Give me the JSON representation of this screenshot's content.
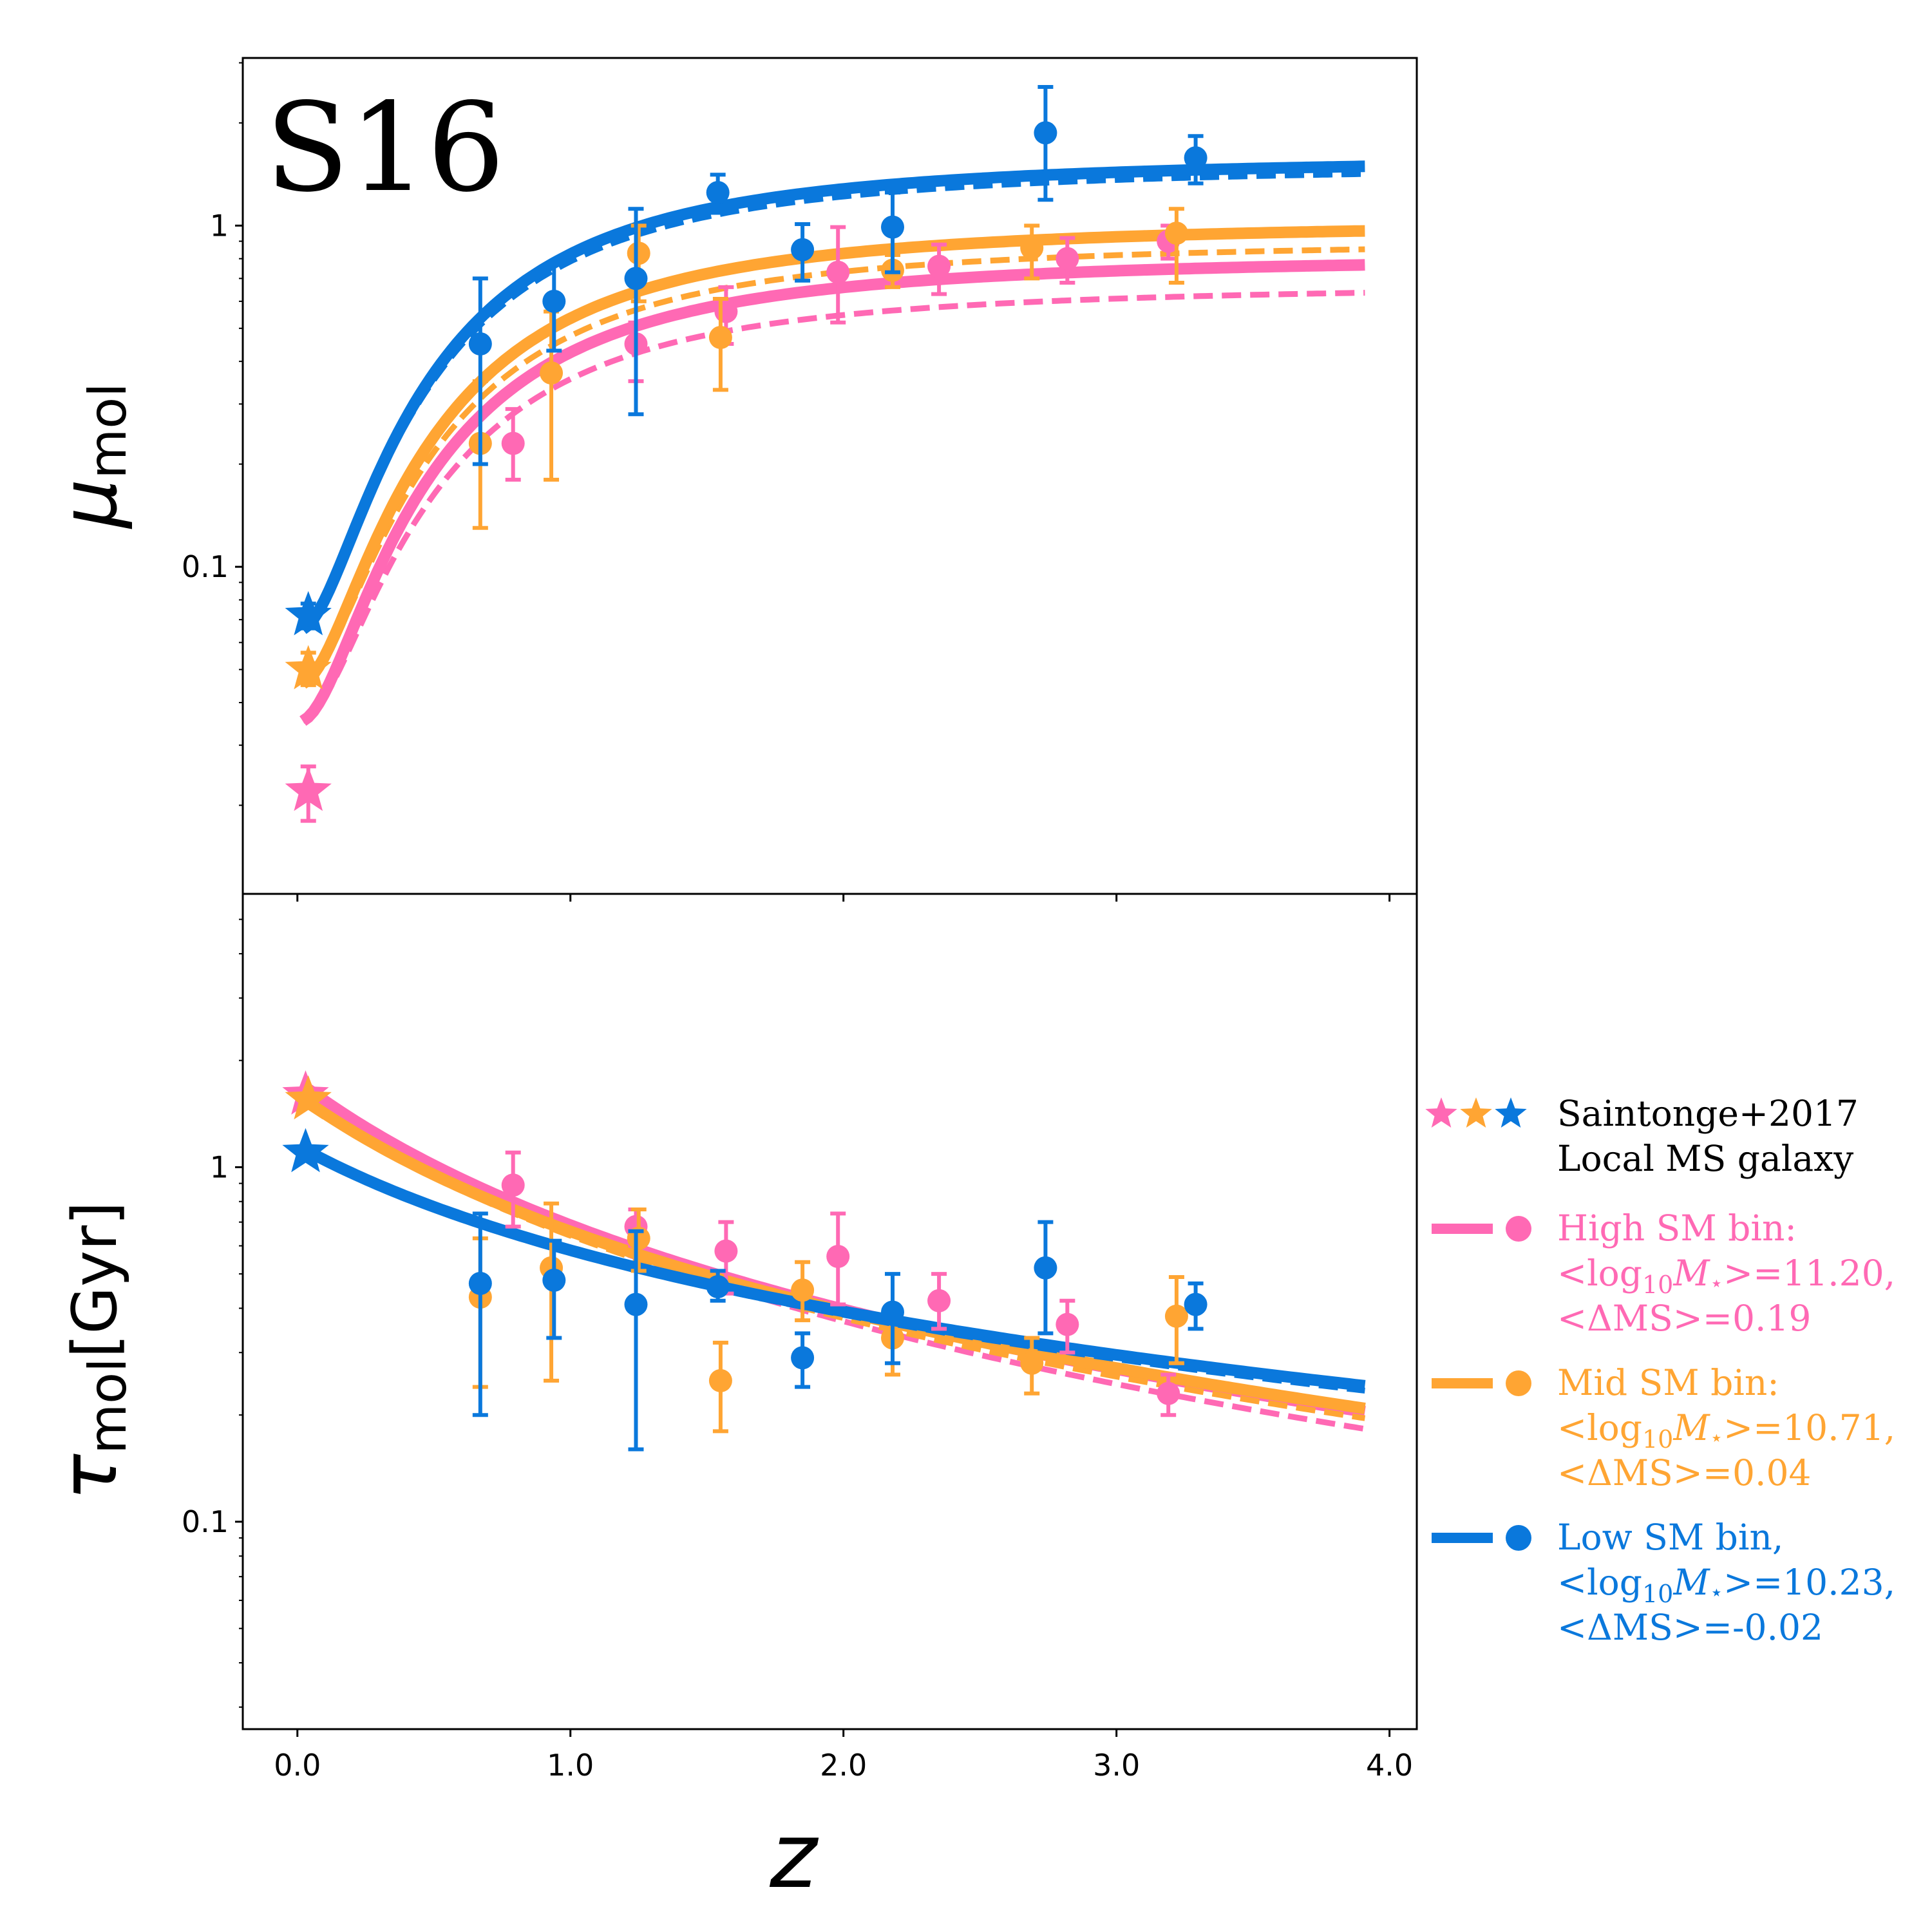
{
  "figure": {
    "panel_label": "S16",
    "xlabel": "z",
    "top_ylabel": "μ",
    "top_ylabel_sub": "mol",
    "bottom_ylabel": "τ",
    "bottom_ylabel_sub": "mol",
    "bottom_ylabel_unit": "[Gyr]"
  },
  "colors": {
    "high": "#ff69b4",
    "mid": "#ffa533",
    "low": "#0a78dc"
  },
  "chart_data": [
    {
      "type": "scatter",
      "panel": "top",
      "title": "S16",
      "ylabel": "μ_mol",
      "xlim": [
        -0.2,
        4.1
      ],
      "ylim": [
        0.011,
        3.1
      ],
      "yscale": "log",
      "xticks": [
        0.0,
        1.0,
        2.0,
        3.0,
        4.0
      ],
      "yticks": [
        {
          "value": 0.1,
          "label": "0.1"
        },
        {
          "value": 1,
          "label": "1"
        }
      ],
      "stars": [
        {
          "group": "high",
          "x": 0.04,
          "y": 0.022,
          "err": [
            0.018,
            0.026
          ]
        },
        {
          "group": "mid",
          "x": 0.04,
          "y": 0.05,
          "err": [
            0.045,
            0.056
          ]
        },
        {
          "group": "low",
          "x": 0.04,
          "y": 0.072,
          "err": [
            0.066,
            0.078
          ]
        }
      ],
      "series": [
        {
          "name": "High SM bin",
          "group": "high",
          "fit_solid": {
            "a": 0.035,
            "b": 0.78,
            "n": 2.0
          },
          "fit_dashed": {
            "a": 0.035,
            "b": 0.64,
            "n": 2.0
          },
          "points": [
            {
              "x": 0.79,
              "y": 0.23,
              "lo": 0.18,
              "hi": 0.29
            },
            {
              "x": 1.24,
              "y": 0.45,
              "lo": 0.35,
              "hi": 0.52
            },
            {
              "x": 1.57,
              "y": 0.56,
              "lo": 0.45,
              "hi": 0.66
            },
            {
              "x": 1.98,
              "y": 0.73,
              "lo": 0.52,
              "hi": 0.99
            },
            {
              "x": 2.35,
              "y": 0.76,
              "lo": 0.63,
              "hi": 0.88
            },
            {
              "x": 2.82,
              "y": 0.8,
              "lo": 0.68,
              "hi": 0.92
            },
            {
              "x": 3.19,
              "y": 0.9,
              "lo": 0.8,
              "hi": 1.0
            }
          ]
        },
        {
          "name": "Mid SM bin",
          "group": "mid",
          "fit_solid": {
            "a": 0.045,
            "b": 0.98,
            "n": 2.0
          },
          "fit_dashed": {
            "a": 0.045,
            "b": 0.86,
            "n": 2.0
          },
          "points": [
            {
              "x": 0.67,
              "y": 0.23,
              "lo": 0.13,
              "hi": 0.35
            },
            {
              "x": 0.93,
              "y": 0.37,
              "lo": 0.18,
              "hi": 0.56
            },
            {
              "x": 1.25,
              "y": 0.83,
              "lo": 0.6,
              "hi": 1.0
            },
            {
              "x": 1.55,
              "y": 0.47,
              "lo": 0.33,
              "hi": 0.61
            },
            {
              "x": 2.18,
              "y": 0.74,
              "lo": 0.66,
              "hi": 0.82
            },
            {
              "x": 2.69,
              "y": 0.86,
              "lo": 0.7,
              "hi": 1.0
            },
            {
              "x": 3.22,
              "y": 0.95,
              "lo": 0.68,
              "hi": 1.12
            }
          ]
        },
        {
          "name": "Low SM bin",
          "group": "low",
          "fit_solid": {
            "a": 0.065,
            "b": 1.52,
            "n": 2.0
          },
          "fit_dashed": {
            "a": 0.065,
            "b": 1.44,
            "n": 2.0
          },
          "points": [
            {
              "x": 0.67,
              "y": 0.45,
              "lo": 0.2,
              "hi": 0.7
            },
            {
              "x": 0.94,
              "y": 0.6,
              "lo": 0.43,
              "hi": 0.78
            },
            {
              "x": 1.24,
              "y": 0.7,
              "lo": 0.28,
              "hi": 1.12
            },
            {
              "x": 1.54,
              "y": 1.25,
              "lo": 1.09,
              "hi": 1.41
            },
            {
              "x": 1.85,
              "y": 0.85,
              "lo": 0.69,
              "hi": 1.01
            },
            {
              "x": 2.18,
              "y": 0.99,
              "lo": 0.73,
              "hi": 1.25
            },
            {
              "x": 2.74,
              "y": 1.87,
              "lo": 1.19,
              "hi": 2.55
            },
            {
              "x": 3.29,
              "y": 1.58,
              "lo": 1.33,
              "hi": 1.83
            }
          ]
        }
      ]
    },
    {
      "type": "scatter",
      "panel": "bottom",
      "xlabel": "z",
      "ylabel": "τ_mol [Gyr]",
      "xlim": [
        -0.2,
        4.1
      ],
      "ylim": [
        0.026,
        5.9
      ],
      "yscale": "log",
      "xticks": [
        0.0,
        1.0,
        2.0,
        3.0,
        4.0
      ],
      "xtick_labels": [
        "0.0",
        "1.0",
        "2.0",
        "3.0",
        "4.0"
      ],
      "yticks": [
        {
          "value": 0.1,
          "label": "0.1"
        },
        {
          "value": 1,
          "label": "1"
        }
      ],
      "stars": [
        {
          "group": "high",
          "x": 0.03,
          "y": 1.6
        },
        {
          "group": "mid",
          "x": 0.04,
          "y": 1.55
        },
        {
          "group": "low",
          "x": 0.03,
          "y": 1.1
        }
      ],
      "series": [
        {
          "name": "High SM bin",
          "group": "high",
          "fit_solid": {
            "tau0": 1.75,
            "k": -1.35
          },
          "fit_dashed": {
            "tau0": 1.75,
            "k": -1.42
          },
          "points": [
            {
              "x": 0.79,
              "y": 0.89,
              "lo": 0.68,
              "hi": 1.1
            },
            {
              "x": 1.24,
              "y": 0.68,
              "lo": 0.6,
              "hi": 0.76
            },
            {
              "x": 1.57,
              "y": 0.58,
              "lo": 0.44,
              "hi": 0.7
            },
            {
              "x": 1.98,
              "y": 0.56,
              "lo": 0.41,
              "hi": 0.74
            },
            {
              "x": 2.35,
              "y": 0.42,
              "lo": 0.35,
              "hi": 0.5
            },
            {
              "x": 2.82,
              "y": 0.36,
              "lo": 0.3,
              "hi": 0.42
            },
            {
              "x": 3.19,
              "y": 0.23,
              "lo": 0.2,
              "hi": 0.26
            }
          ]
        },
        {
          "name": "Mid SM bin",
          "group": "mid",
          "fit_solid": {
            "tau0": 1.6,
            "k": -1.28
          },
          "fit_dashed": {
            "tau0": 1.6,
            "k": -1.32
          },
          "points": [
            {
              "x": 0.67,
              "y": 0.43,
              "lo": 0.24,
              "hi": 0.63
            },
            {
              "x": 0.93,
              "y": 0.52,
              "lo": 0.25,
              "hi": 0.79
            },
            {
              "x": 1.25,
              "y": 0.63,
              "lo": 0.51,
              "hi": 0.76
            },
            {
              "x": 1.55,
              "y": 0.25,
              "lo": 0.18,
              "hi": 0.32
            },
            {
              "x": 1.85,
              "y": 0.45,
              "lo": 0.37,
              "hi": 0.54
            },
            {
              "x": 2.18,
              "y": 0.33,
              "lo": 0.26,
              "hi": 0.39
            },
            {
              "x": 2.69,
              "y": 0.28,
              "lo": 0.23,
              "hi": 0.33
            },
            {
              "x": 3.22,
              "y": 0.38,
              "lo": 0.28,
              "hi": 0.49
            }
          ]
        },
        {
          "name": "Low SM bin",
          "group": "low",
          "fit_solid": {
            "tau0": 1.15,
            "k": -0.98
          },
          "fit_dashed": {
            "tau0": 1.15,
            "k": -1.0
          },
          "points": [
            {
              "x": 0.67,
              "y": 0.47,
              "lo": 0.2,
              "hi": 0.74
            },
            {
              "x": 0.94,
              "y": 0.48,
              "lo": 0.33,
              "hi": 0.62
            },
            {
              "x": 1.24,
              "y": 0.41,
              "lo": 0.16,
              "hi": 0.66
            },
            {
              "x": 1.54,
              "y": 0.46,
              "lo": 0.42,
              "hi": 0.51
            },
            {
              "x": 1.85,
              "y": 0.29,
              "lo": 0.24,
              "hi": 0.34
            },
            {
              "x": 2.18,
              "y": 0.39,
              "lo": 0.28,
              "hi": 0.5
            },
            {
              "x": 2.74,
              "y": 0.52,
              "lo": 0.34,
              "hi": 0.7
            },
            {
              "x": 3.29,
              "y": 0.41,
              "lo": 0.35,
              "hi": 0.47
            }
          ]
        }
      ]
    }
  ],
  "legend": {
    "position": "right of bottom panel",
    "entries": [
      {
        "group": "stars",
        "lines": [
          "Saintonge+2017",
          "Local MS galaxy"
        ]
      },
      {
        "group": "high",
        "lines": [
          "High SM bin:",
          "<log10M⋆>=11.20,",
          "<ΔMS>=0.19"
        ]
      },
      {
        "group": "mid",
        "lines": [
          "Mid SM bin:",
          "<log10M⋆>=10.71,",
          "<ΔMS>=0.04"
        ]
      },
      {
        "group": "low",
        "lines": [
          "Low SM bin,",
          "<log10M⋆>=10.23,",
          "<ΔMS>=-0.02"
        ]
      }
    ]
  }
}
